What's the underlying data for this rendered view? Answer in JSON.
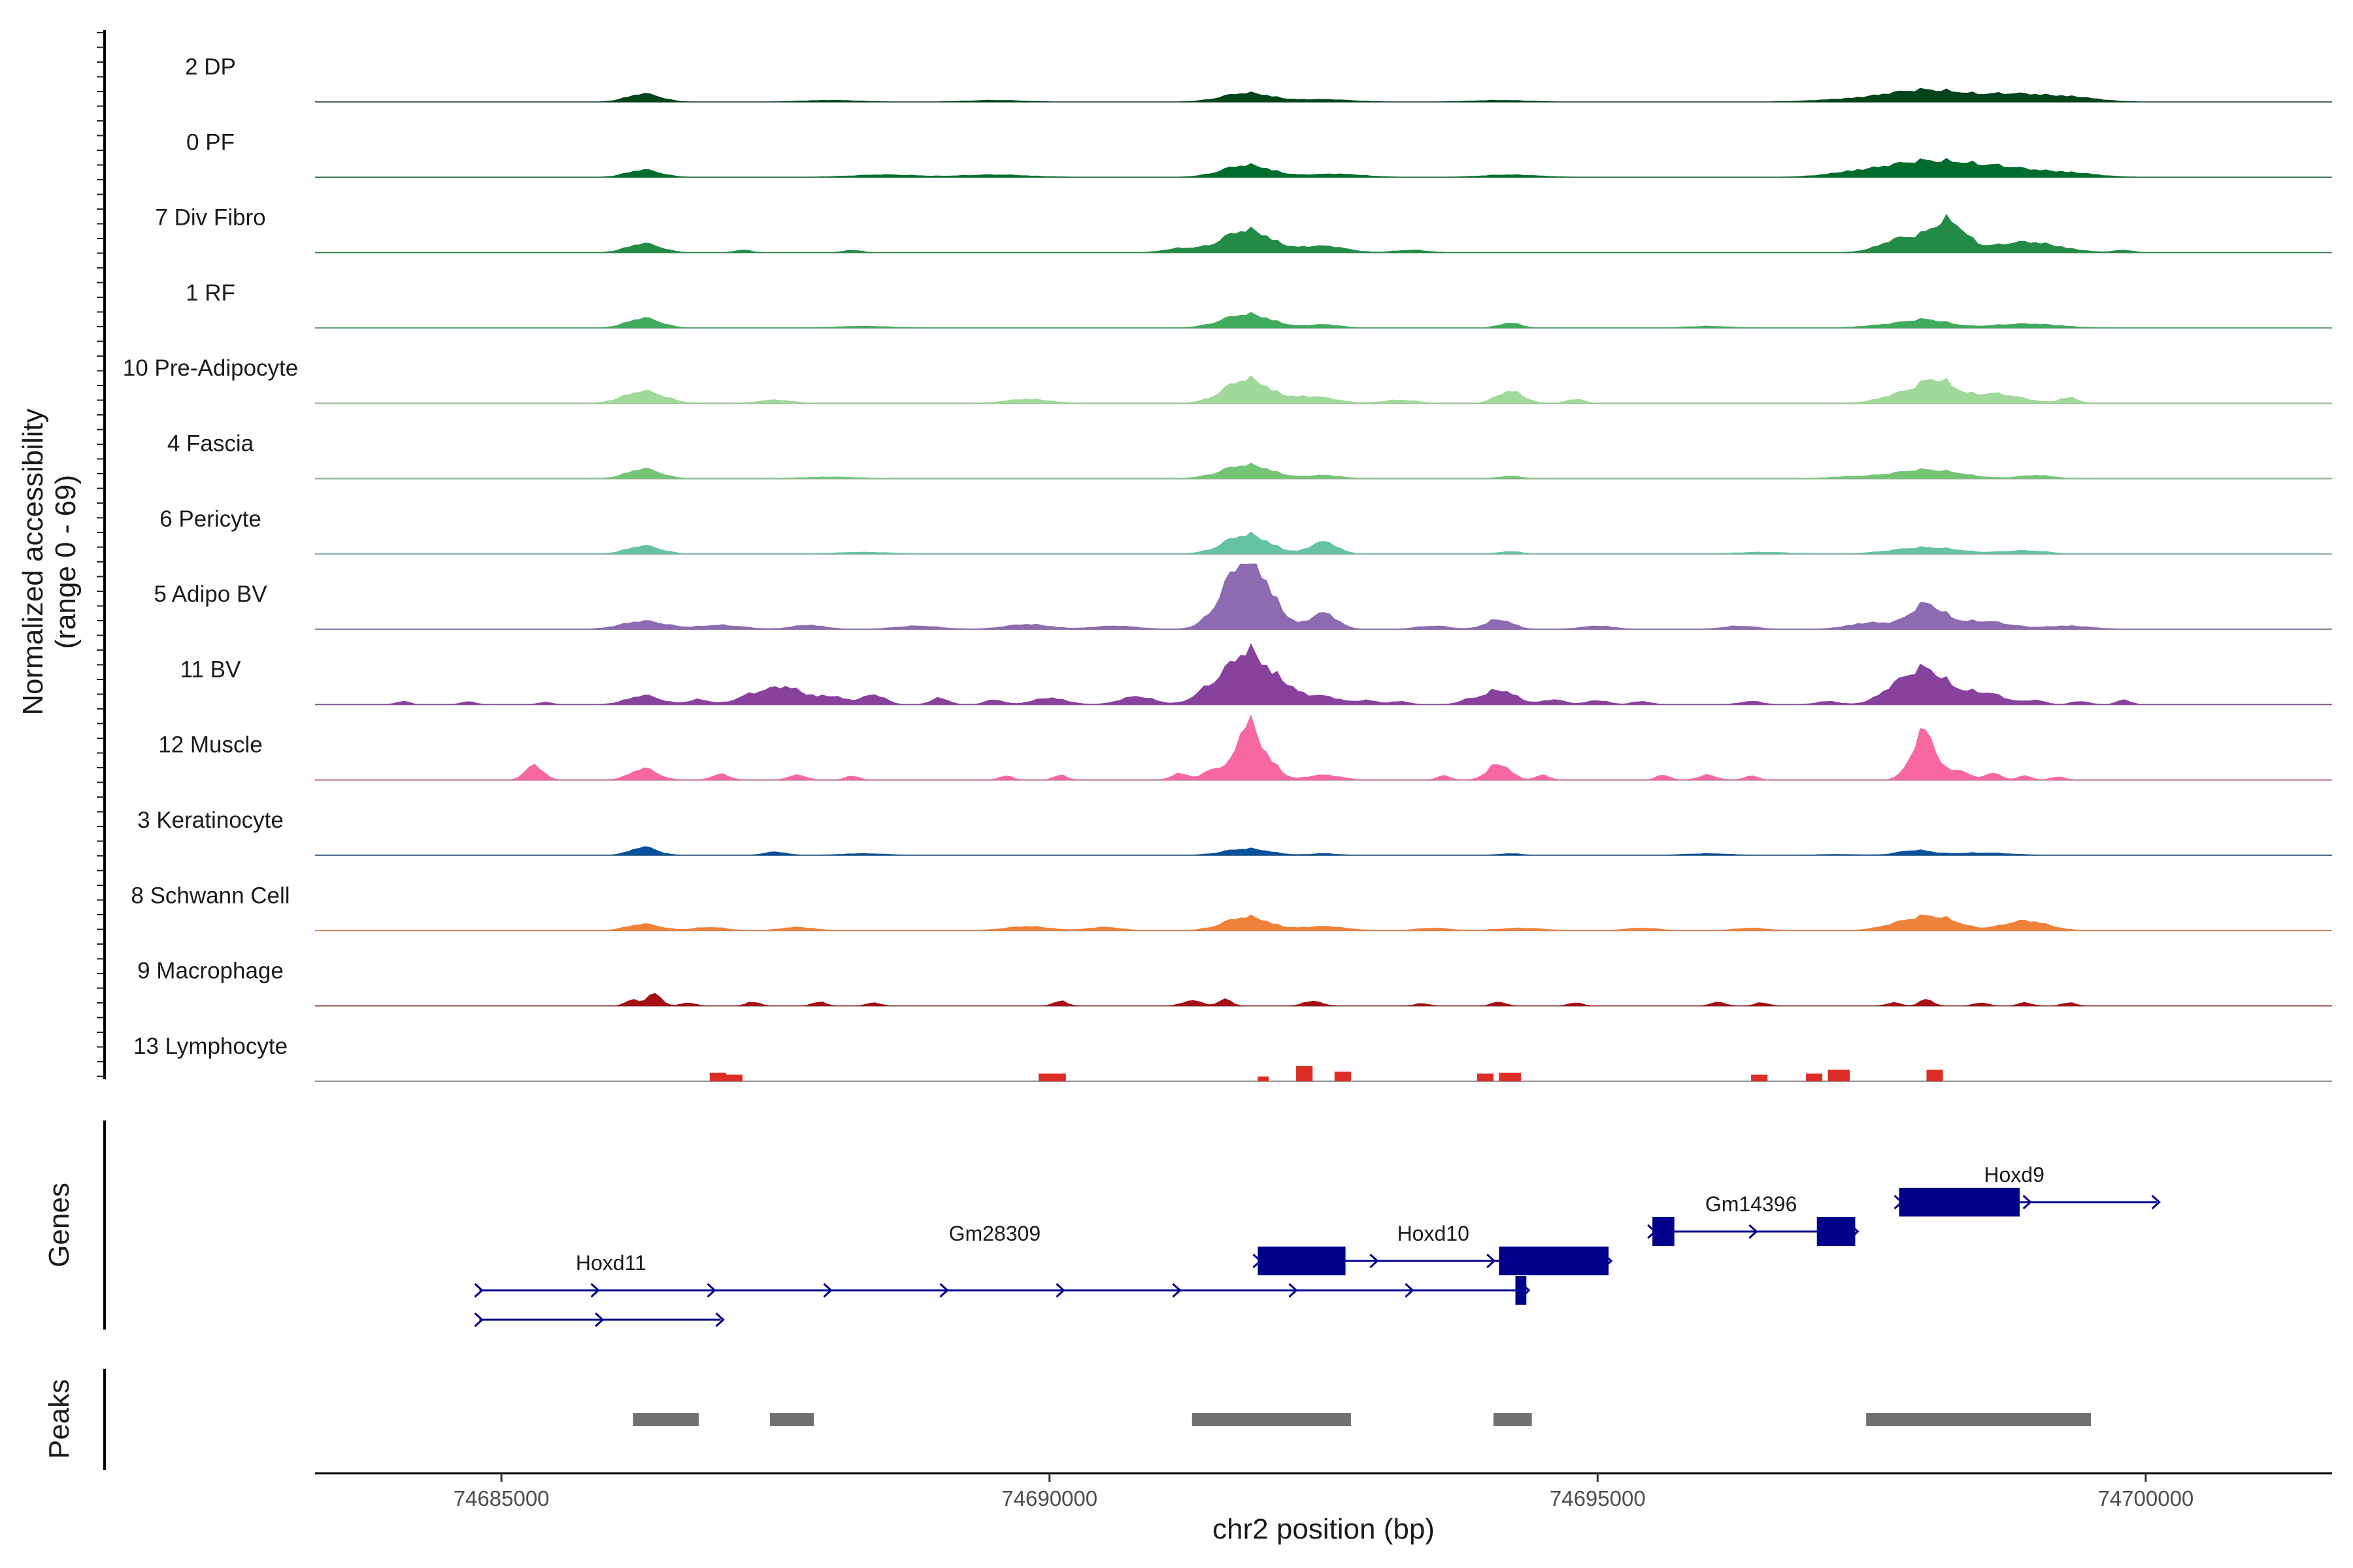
{
  "chart_data": {
    "type": "area",
    "title": "",
    "ylabel": "Normalized accessibility (range 0 - 69)",
    "ylabel_line1": "Normalized accessibility",
    "ylabel_line2": "(range 0 - 69)",
    "ylim": [
      0,
      69
    ],
    "xlabel": "chr2 position (bp)",
    "xlim": [
      74683300,
      74701700
    ],
    "x_ticks": [
      74685000,
      74690000,
      74695000,
      74700000
    ],
    "x_tick_labels": [
      "74685000",
      "74690000",
      "74695000",
      "74700000"
    ],
    "tracks": [
      {
        "name": "2 DP",
        "color": "#00441b",
        "peaks": [
          [
            74686300,
            150,
            10
          ],
          [
            74688000,
            250,
            2
          ],
          [
            74689500,
            250,
            2
          ],
          [
            74691800,
            220,
            11
          ],
          [
            74692500,
            250,
            3
          ],
          [
            74694100,
            250,
            2
          ],
          [
            74697200,
            300,
            2
          ],
          [
            74698000,
            380,
            15
          ],
          [
            74698800,
            250,
            8
          ],
          [
            74699300,
            250,
            6
          ]
        ]
      },
      {
        "name": "0 PF",
        "color": "#006d2c",
        "peaks": [
          [
            74686300,
            150,
            9
          ],
          [
            74688500,
            300,
            3
          ],
          [
            74689500,
            300,
            3
          ],
          [
            74691800,
            220,
            15
          ],
          [
            74692600,
            250,
            4
          ],
          [
            74694200,
            250,
            3
          ],
          [
            74697300,
            250,
            4
          ],
          [
            74698000,
            380,
            20
          ],
          [
            74698700,
            300,
            10
          ],
          [
            74699300,
            250,
            5
          ]
        ]
      },
      {
        "name": "7 Div Fibro",
        "color": "#238b45",
        "peaks": [
          [
            74686300,
            150,
            11
          ],
          [
            74687200,
            80,
            3
          ],
          [
            74688200,
            80,
            3
          ],
          [
            74691200,
            150,
            5
          ],
          [
            74691800,
            220,
            28
          ],
          [
            74692500,
            200,
            8
          ],
          [
            74693300,
            150,
            3
          ],
          [
            74697800,
            200,
            18
          ],
          [
            74698200,
            150,
            37
          ],
          [
            74698900,
            300,
            13
          ],
          [
            74699800,
            80,
            3
          ]
        ]
      },
      {
        "name": "1 RF",
        "color": "#41ab5d",
        "peaks": [
          [
            74686300,
            150,
            12
          ],
          [
            74688300,
            250,
            2
          ],
          [
            74691800,
            220,
            17
          ],
          [
            74692500,
            150,
            4
          ],
          [
            74694200,
            100,
            6
          ],
          [
            74696000,
            200,
            2
          ],
          [
            74697600,
            200,
            3
          ],
          [
            74698000,
            200,
            10
          ],
          [
            74698900,
            300,
            5
          ]
        ]
      },
      {
        "name": "10 Pre-Adipocyte",
        "color": "#a1d99b",
        "peaks": [
          [
            74686300,
            180,
            15
          ],
          [
            74687500,
            150,
            4
          ],
          [
            74689800,
            200,
            5
          ],
          [
            74691800,
            200,
            30
          ],
          [
            74692400,
            200,
            8
          ],
          [
            74693200,
            150,
            4
          ],
          [
            74694200,
            120,
            15
          ],
          [
            74694800,
            80,
            5
          ],
          [
            74697800,
            200,
            12
          ],
          [
            74698100,
            150,
            25
          ],
          [
            74698600,
            250,
            12
          ],
          [
            74699300,
            80,
            7
          ]
        ]
      },
      {
        "name": "4 Fascia",
        "color": "#74c476",
        "peaks": [
          [
            74686300,
            150,
            12
          ],
          [
            74688000,
            250,
            2
          ],
          [
            74691800,
            220,
            17
          ],
          [
            74692500,
            150,
            4
          ],
          [
            74694200,
            100,
            3
          ],
          [
            74697300,
            200,
            2
          ],
          [
            74698000,
            300,
            11
          ],
          [
            74699000,
            150,
            4
          ]
        ]
      },
      {
        "name": "6 Pericyte",
        "color": "#66c2a4",
        "peaks": [
          [
            74686300,
            150,
            10
          ],
          [
            74688300,
            250,
            2
          ],
          [
            74691800,
            200,
            24
          ],
          [
            74692500,
            120,
            15
          ],
          [
            74694200,
            100,
            3
          ],
          [
            74696500,
            250,
            2
          ],
          [
            74698000,
            300,
            8
          ],
          [
            74698900,
            200,
            4
          ]
        ]
      },
      {
        "name": "5 Adipo BV",
        "color": "#8c6bb1",
        "peaks": [
          [
            74686300,
            200,
            10
          ],
          [
            74687000,
            200,
            5
          ],
          [
            74687800,
            150,
            5
          ],
          [
            74688800,
            200,
            4
          ],
          [
            74689800,
            200,
            6
          ],
          [
            74690600,
            200,
            4
          ],
          [
            74691600,
            150,
            25
          ],
          [
            74691800,
            150,
            68
          ],
          [
            74692000,
            150,
            25
          ],
          [
            74692500,
            120,
            20
          ],
          [
            74693500,
            150,
            4
          ],
          [
            74694100,
            120,
            12
          ],
          [
            74695000,
            150,
            4
          ],
          [
            74696300,
            150,
            4
          ],
          [
            74697500,
            200,
            8
          ],
          [
            74698000,
            150,
            30
          ],
          [
            74698500,
            250,
            10
          ],
          [
            74699300,
            200,
            4
          ]
        ]
      },
      {
        "name": "11 BV",
        "color": "#88419d",
        "peaks": [
          [
            74684100,
            60,
            4
          ],
          [
            74684700,
            60,
            4
          ],
          [
            74685400,
            60,
            3
          ],
          [
            74686300,
            150,
            11
          ],
          [
            74686800,
            100,
            6
          ],
          [
            74687300,
            150,
            12
          ],
          [
            74687600,
            150,
            20
          ],
          [
            74688000,
            150,
            10
          ],
          [
            74688400,
            100,
            12
          ],
          [
            74689000,
            80,
            8
          ],
          [
            74689500,
            80,
            6
          ],
          [
            74690000,
            150,
            8
          ],
          [
            74690800,
            150,
            10
          ],
          [
            74691500,
            150,
            22
          ],
          [
            74691800,
            150,
            60
          ],
          [
            74692100,
            150,
            25
          ],
          [
            74692500,
            150,
            10
          ],
          [
            74692900,
            100,
            5
          ],
          [
            74693200,
            80,
            4
          ],
          [
            74693800,
            80,
            4
          ],
          [
            74694100,
            150,
            18
          ],
          [
            74694600,
            100,
            6
          ],
          [
            74695000,
            100,
            5
          ],
          [
            74695400,
            80,
            4
          ],
          [
            74696400,
            100,
            4
          ],
          [
            74697100,
            100,
            4
          ],
          [
            74697700,
            150,
            15
          ],
          [
            74698000,
            180,
            42
          ],
          [
            74698500,
            200,
            15
          ],
          [
            74699000,
            80,
            5
          ],
          [
            74699400,
            80,
            4
          ],
          [
            74699800,
            60,
            6
          ]
        ]
      },
      {
        "name": "12 Muscle",
        "color": "#f768a1",
        "peaks": [
          [
            74685300,
            80,
            18
          ],
          [
            74686300,
            120,
            14
          ],
          [
            74687000,
            80,
            7
          ],
          [
            74687700,
            80,
            6
          ],
          [
            74688200,
            60,
            5
          ],
          [
            74689600,
            60,
            5
          ],
          [
            74690100,
            60,
            6
          ],
          [
            74691200,
            80,
            8
          ],
          [
            74691500,
            80,
            15
          ],
          [
            74691800,
            100,
            69
          ],
          [
            74692000,
            100,
            20
          ],
          [
            74692500,
            150,
            6
          ],
          [
            74693600,
            60,
            5
          ],
          [
            74694100,
            100,
            20
          ],
          [
            74694500,
            60,
            6
          ],
          [
            74695600,
            60,
            6
          ],
          [
            74696000,
            80,
            6
          ],
          [
            74696400,
            60,
            5
          ],
          [
            74697900,
            100,
            15
          ],
          [
            74698000,
            100,
            50
          ],
          [
            74698300,
            80,
            12
          ],
          [
            74698600,
            80,
            8
          ],
          [
            74698900,
            60,
            5
          ],
          [
            74699200,
            60,
            4
          ]
        ]
      },
      {
        "name": "3 Keratinocyte",
        "color": "#08519c",
        "peaks": [
          [
            74686300,
            120,
            10
          ],
          [
            74687500,
            100,
            4
          ],
          [
            74688300,
            200,
            2
          ],
          [
            74691800,
            200,
            8
          ],
          [
            74692500,
            120,
            2
          ],
          [
            74694200,
            100,
            2
          ],
          [
            74696000,
            200,
            2
          ],
          [
            74697200,
            200,
            1
          ],
          [
            74697900,
            150,
            6
          ],
          [
            74698500,
            250,
            3
          ]
        ]
      },
      {
        "name": "8 Schwann Cell",
        "color": "#f0813b",
        "peaks": [
          [
            74686300,
            150,
            8
          ],
          [
            74686900,
            150,
            4
          ],
          [
            74687700,
            150,
            4
          ],
          [
            74689800,
            200,
            5
          ],
          [
            74690500,
            150,
            4
          ],
          [
            74691800,
            200,
            17
          ],
          [
            74692500,
            200,
            5
          ],
          [
            74693500,
            150,
            3
          ],
          [
            74694300,
            200,
            3
          ],
          [
            74695400,
            150,
            3
          ],
          [
            74696400,
            150,
            3
          ],
          [
            74697800,
            200,
            8
          ],
          [
            74698100,
            200,
            15
          ],
          [
            74698900,
            200,
            12
          ]
        ]
      },
      {
        "name": "9 Macrophage",
        "color": "#a50f15",
        "peaks": [
          [
            74686200,
            60,
            8
          ],
          [
            74686400,
            60,
            16
          ],
          [
            74686700,
            60,
            4
          ],
          [
            74687300,
            60,
            5
          ],
          [
            74687900,
            60,
            5
          ],
          [
            74688400,
            60,
            4
          ],
          [
            74690100,
            60,
            6
          ],
          [
            74691300,
            80,
            7
          ],
          [
            74691600,
            60,
            8
          ],
          [
            74692400,
            80,
            6
          ],
          [
            74693400,
            60,
            3
          ],
          [
            74694100,
            60,
            5
          ],
          [
            74694800,
            60,
            4
          ],
          [
            74696100,
            60,
            5
          ],
          [
            74696500,
            60,
            4
          ],
          [
            74697700,
            60,
            4
          ],
          [
            74698000,
            60,
            8
          ],
          [
            74698500,
            60,
            4
          ],
          [
            74698900,
            60,
            4
          ],
          [
            74699300,
            60,
            4
          ]
        ]
      },
      {
        "name": "13 Lymphocyte",
        "color": "#de2d26",
        "blocks": [
          [
            74686900,
            74687050,
            9
          ],
          [
            74687050,
            74687200,
            7
          ],
          [
            74689900,
            74690150,
            8
          ],
          [
            74691900,
            74692000,
            5
          ],
          [
            74692250,
            74692400,
            16
          ],
          [
            74692600,
            74692750,
            10
          ],
          [
            74693900,
            74694050,
            8
          ],
          [
            74694100,
            74694300,
            9
          ],
          [
            74696400,
            74696550,
            7
          ],
          [
            74696900,
            74697050,
            8
          ],
          [
            74697100,
            74697300,
            12
          ],
          [
            74698000,
            74698150,
            12
          ]
        ]
      }
    ],
    "genes": {
      "title": "Genes",
      "color": "#00008b",
      "labels": [
        {
          "name": "Hoxd9",
          "x": 74698800,
          "row": 0
        },
        {
          "name": "Gm14396",
          "x": 74696400,
          "row": 1
        },
        {
          "name": "Hoxd10",
          "x": 74693500,
          "row": 2
        },
        {
          "name": "Gm28309",
          "x": 74689500,
          "row": 2
        },
        {
          "name": "Hoxd11",
          "x": 74686000,
          "row": 3
        }
      ],
      "transcripts": [
        {
          "start": 74697750,
          "end": 74700100,
          "row": 0,
          "exons": [
            [
              74697750,
              74698850
            ]
          ]
        },
        {
          "start": 74695500,
          "end": 74697350,
          "row": 1,
          "exons": [
            [
              74695500,
              74695700
            ],
            [
              74697000,
              74697350
            ]
          ]
        },
        {
          "start": 74691900,
          "end": 74695100,
          "row": 2,
          "exons": [
            [
              74691900,
              74692700
            ],
            [
              74694100,
              74695100
            ]
          ]
        },
        {
          "start": 74684800,
          "end": 74694350,
          "row": 3,
          "exons": [
            [
              74694250,
              74694350
            ]
          ]
        },
        {
          "start": 74684800,
          "end": 74687000,
          "row": 4,
          "exons": []
        }
      ]
    },
    "peaks_track": {
      "title": "Peaks",
      "color": "#707070",
      "regions": [
        [
          74686200,
          74686800
        ],
        [
          74687450,
          74687850
        ],
        [
          74691300,
          74692750
        ],
        [
          74694050,
          74694400
        ],
        [
          74697450,
          74699500
        ]
      ]
    }
  }
}
